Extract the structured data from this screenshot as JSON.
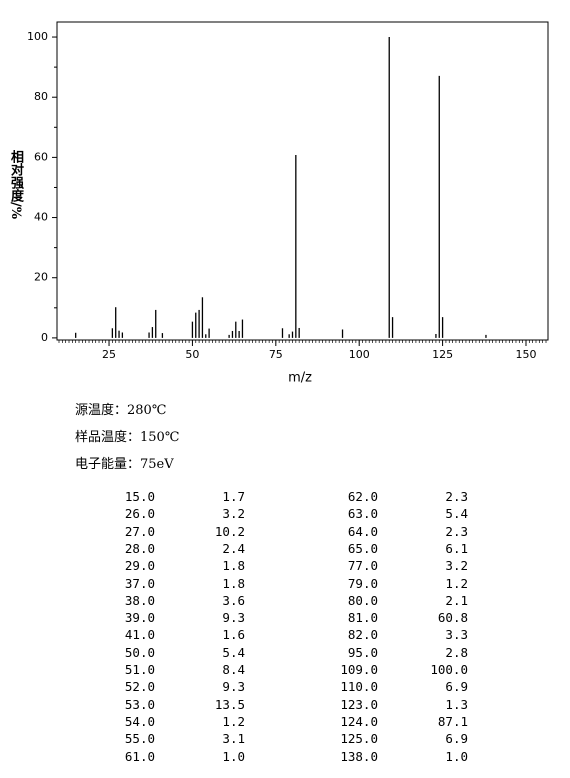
{
  "chart_data": {
    "type": "bar",
    "x_label": "m/z",
    "y_label": "相对强度/%",
    "color": "#000000",
    "x": [
      15,
      26,
      27,
      28,
      29,
      37,
      38,
      39,
      41,
      50,
      51,
      52,
      53,
      54,
      55,
      61,
      62,
      63,
      64,
      65,
      77,
      79,
      80,
      81,
      82,
      95,
      109,
      110,
      123,
      124,
      125,
      138
    ],
    "values": [
      1.7,
      3.2,
      10.2,
      2.4,
      1.8,
      1.8,
      3.6,
      9.3,
      1.6,
      5.4,
      8.4,
      9.3,
      13.5,
      1.2,
      3.1,
      1.0,
      2.3,
      5.4,
      2.3,
      6.1,
      3.2,
      1.2,
      2.1,
      60.8,
      3.3,
      2.8,
      100.0,
      6.9,
      1.3,
      87.1,
      6.9,
      1.0
    ],
    "xlim": [
      9.4,
      156.6
    ],
    "ylim": [
      -0.7,
      105
    ],
    "xticks": [
      25,
      50,
      75,
      100,
      125,
      150
    ],
    "yticks": [
      0,
      20,
      40,
      60,
      80,
      100
    ]
  },
  "info": [
    "源温度：280℃",
    "样品温度：150℃",
    "电子能量：75eV"
  ],
  "table": {
    "rows": [
      [
        "15.0",
        "1.7",
        "62.0",
        "2.3"
      ],
      [
        "26.0",
        "3.2",
        "63.0",
        "5.4"
      ],
      [
        "27.0",
        "10.2",
        "64.0",
        "2.3"
      ],
      [
        "28.0",
        "2.4",
        "65.0",
        "6.1"
      ],
      [
        "29.0",
        "1.8",
        "77.0",
        "3.2"
      ],
      [
        "37.0",
        "1.8",
        "79.0",
        "1.2"
      ],
      [
        "38.0",
        "3.6",
        "80.0",
        "2.1"
      ],
      [
        "39.0",
        "9.3",
        "81.0",
        "60.8"
      ],
      [
        "41.0",
        "1.6",
        "82.0",
        "3.3"
      ],
      [
        "50.0",
        "5.4",
        "95.0",
        "2.8"
      ],
      [
        "51.0",
        "8.4",
        "109.0",
        "100.0"
      ],
      [
        "52.0",
        "9.3",
        "110.0",
        "6.9"
      ],
      [
        "53.0",
        "13.5",
        "123.0",
        "1.3"
      ],
      [
        "54.0",
        "1.2",
        "124.0",
        "87.1"
      ],
      [
        "55.0",
        "3.1",
        "125.0",
        "6.9"
      ],
      [
        "61.0",
        "1.0",
        "138.0",
        "1.0"
      ]
    ]
  }
}
